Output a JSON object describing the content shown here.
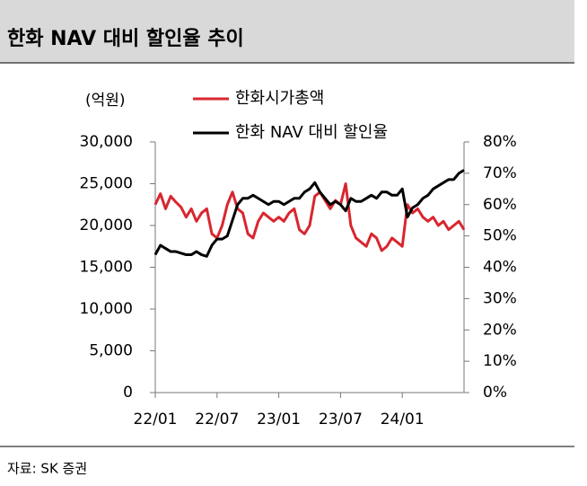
{
  "header": {
    "title": "한화 NAV 대비 할인율 추이"
  },
  "chart_data": {
    "type": "line",
    "y_unit": "(억원)",
    "categories": [
      "22/01",
      null,
      null,
      null,
      null,
      null,
      null,
      null,
      null,
      null,
      null,
      null,
      "22/07",
      null,
      null,
      null,
      null,
      null,
      null,
      null,
      null,
      null,
      null,
      null,
      "23/01",
      null,
      null,
      null,
      null,
      null,
      null,
      null,
      null,
      null,
      null,
      null,
      "23/07",
      null,
      null,
      null,
      null,
      null,
      null,
      null,
      null,
      null,
      null,
      null,
      "24/01",
      null,
      null,
      null,
      null,
      null,
      null,
      null,
      null,
      null,
      null,
      null,
      null
    ],
    "series": [
      {
        "name": "한화시가총액",
        "color": "#d9262f",
        "axis": "y",
        "values": [
          22500,
          23800,
          22000,
          23500,
          22800,
          22200,
          21000,
          22000,
          20500,
          21500,
          22000,
          19000,
          18500,
          20000,
          22500,
          24000,
          22000,
          21500,
          19000,
          18500,
          20500,
          21500,
          21000,
          20500,
          21000,
          20500,
          21500,
          22000,
          19500,
          19000,
          20000,
          23500,
          24000,
          23000,
          22000,
          23000,
          22500,
          25000,
          20000,
          18500,
          18000,
          17500,
          19000,
          18500,
          17000,
          17500,
          18500,
          18000,
          17500,
          22500,
          21500,
          22000,
          21000,
          20500,
          21000,
          20000,
          20500,
          19500,
          20000,
          20500,
          19500
        ]
      },
      {
        "name": "한화 NAV 대비 할인율",
        "color": "#000000",
        "axis": "y2",
        "values": [
          44,
          47,
          46,
          45,
          45,
          44.5,
          44,
          44,
          45,
          44,
          43.5,
          47,
          49,
          49,
          50,
          55,
          60,
          62,
          62,
          63,
          62,
          61,
          60,
          61,
          61,
          60,
          61,
          62,
          62,
          64,
          65,
          67,
          64,
          62,
          60,
          61,
          60,
          58,
          62,
          61,
          61,
          62,
          63,
          62,
          64,
          64,
          63,
          63,
          65,
          56,
          59,
          60,
          62,
          63,
          65,
          66,
          67,
          68,
          68,
          70,
          71
        ]
      }
    ],
    "ylim": [
      0,
      30000
    ],
    "yticks": [
      0,
      {
        "value": 5000,
        "label": "5,000"
      },
      {
        "value": 10000,
        "label": "10,000"
      },
      {
        "value": 15000,
        "label": "15,000"
      },
      {
        "value": 20000,
        "label": "20,000"
      },
      {
        "value": 25000,
        "label": "25,000"
      },
      {
        "value": 30000,
        "label": "30,000"
      }
    ],
    "y2lim": [
      0,
      80
    ],
    "y2ticks": [
      {
        "value": 0,
        "label": "0%"
      },
      {
        "value": 10,
        "label": "10%"
      },
      {
        "value": 20,
        "label": "20%"
      },
      {
        "value": 30,
        "label": "30%"
      },
      {
        "value": 40,
        "label": "40%"
      },
      {
        "value": 50,
        "label": "50%"
      },
      {
        "value": 60,
        "label": "60%"
      },
      {
        "value": 70,
        "label": "70%"
      },
      {
        "value": 80,
        "label": "80%"
      }
    ]
  },
  "source": "자료: SK 증권"
}
